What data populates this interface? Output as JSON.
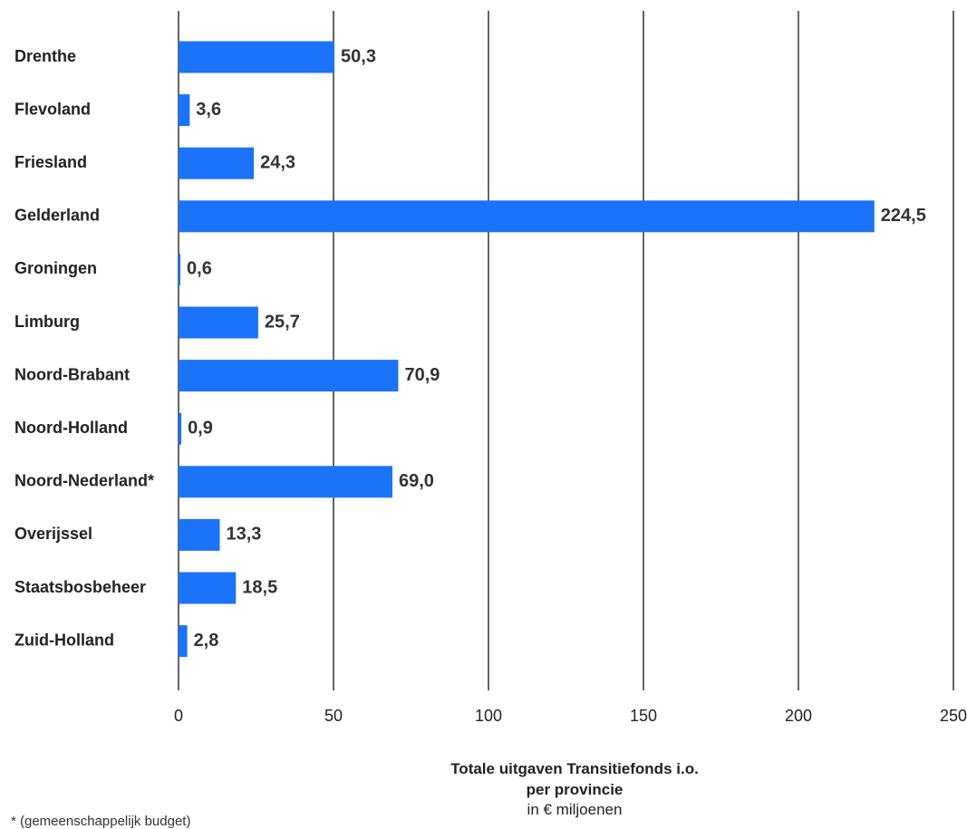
{
  "chart_data": {
    "type": "bar",
    "orientation": "horizontal",
    "categories": [
      "Drenthe",
      "Flevoland",
      "Friesland",
      "Gelderland",
      "Groningen",
      "Limburg",
      "Noord-Brabant",
      "Noord-Holland",
      "Noord-Nederland*",
      "Overijssel",
      "Staatsbosbeheer",
      "Zuid-Holland"
    ],
    "values": [
      50.3,
      3.6,
      24.3,
      224.5,
      0.6,
      25.7,
      70.9,
      0.9,
      69.0,
      13.3,
      18.5,
      2.8
    ],
    "value_labels": [
      "50,3",
      "3,6",
      "24,3",
      "224,5",
      "0,6",
      "25,7",
      "70,9",
      "0,9",
      "69,0",
      "13,3",
      "18,5",
      "2,8"
    ],
    "xlim": [
      0,
      250
    ],
    "xticks": [
      0,
      50,
      100,
      150,
      200,
      250
    ],
    "xtick_labels": [
      "0",
      "50",
      "100",
      "150",
      "200",
      "250"
    ],
    "xlabel_line1": "Totale uitgaven Transitiefonds i.o.",
    "xlabel_line2": "per provincie",
    "xlabel_unit": "in € miljoenen",
    "ylabel": "",
    "title": "",
    "grid": true,
    "legend": "none",
    "bar_color": "#1A73F8",
    "gridline_color": "#000000"
  },
  "footnote": "* (gemeenschappelijk budget)"
}
